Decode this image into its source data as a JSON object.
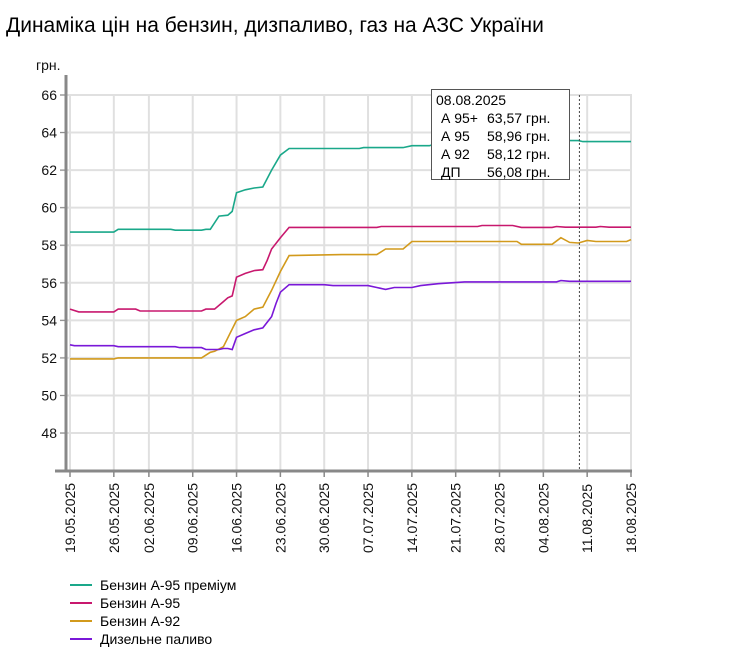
{
  "chart_data": {
    "type": "line",
    "title": "Динаміка цін на бензин, дизпаливо, газ на АЗС України",
    "ylabel": "грн.",
    "ylim": [
      47,
      66.5
    ],
    "yticks": [
      48,
      50,
      52,
      54,
      56,
      58,
      60,
      62,
      64,
      66
    ],
    "xlim": [
      0,
      128
    ],
    "xticks": [
      {
        "i": 0,
        "label": "19.05.2025"
      },
      {
        "i": 10,
        "label": "26.05.2025"
      },
      {
        "i": 18,
        "label": "02.06.2025"
      },
      {
        "i": 28,
        "label": "09.06.2025"
      },
      {
        "i": 38,
        "label": "16.06.2025"
      },
      {
        "i": 48,
        "label": "23.06.2025"
      },
      {
        "i": 58,
        "label": "30.06.2025"
      },
      {
        "i": 68,
        "label": "07.07.2025"
      },
      {
        "i": 78,
        "label": "14.07.2025"
      },
      {
        "i": 88,
        "label": "21.07.2025"
      },
      {
        "i": 98,
        "label": "28.07.2025"
      },
      {
        "i": 108,
        "label": "04.08.2025"
      },
      {
        "i": 118,
        "label": "11.08.2025"
      },
      {
        "i": 128,
        "label": "18.08.2025"
      }
    ],
    "grid": true,
    "legend_position": "bottom-left",
    "series": [
      {
        "name": "Бензин А-95 преміум",
        "color": "#1aa88a",
        "points": [
          [
            0,
            58.7
          ],
          [
            10,
            58.7
          ],
          [
            11,
            58.85
          ],
          [
            23,
            58.85
          ],
          [
            24,
            58.8
          ],
          [
            30,
            58.8
          ],
          [
            31,
            58.85
          ],
          [
            32,
            58.85
          ],
          [
            34,
            59.55
          ],
          [
            36,
            59.6
          ],
          [
            37,
            59.8
          ],
          [
            38,
            60.8
          ],
          [
            40,
            60.95
          ],
          [
            42,
            61.05
          ],
          [
            44,
            61.1
          ],
          [
            46,
            62.0
          ],
          [
            48,
            62.8
          ],
          [
            50,
            63.15
          ],
          [
            66,
            63.15
          ],
          [
            67,
            63.2
          ],
          [
            76,
            63.2
          ],
          [
            78,
            63.3
          ],
          [
            82,
            63.3
          ],
          [
            84,
            63.45
          ],
          [
            88,
            63.57
          ],
          [
            116,
            63.57
          ],
          [
            117,
            63.52
          ],
          [
            128,
            63.52
          ]
        ]
      },
      {
        "name": "Бензин А-95",
        "color": "#c8186e",
        "points": [
          [
            0,
            54.6
          ],
          [
            2,
            54.45
          ],
          [
            10,
            54.45
          ],
          [
            11,
            54.6
          ],
          [
            15,
            54.6
          ],
          [
            16,
            54.5
          ],
          [
            30,
            54.5
          ],
          [
            31,
            54.6
          ],
          [
            33,
            54.6
          ],
          [
            35,
            55.0
          ],
          [
            36,
            55.2
          ],
          [
            37,
            55.3
          ],
          [
            38,
            56.3
          ],
          [
            40,
            56.5
          ],
          [
            42,
            56.65
          ],
          [
            44,
            56.7
          ],
          [
            45,
            57.2
          ],
          [
            46,
            57.8
          ],
          [
            48,
            58.4
          ],
          [
            50,
            58.95
          ],
          [
            70,
            58.95
          ],
          [
            71,
            59.0
          ],
          [
            93,
            59.0
          ],
          [
            94,
            59.05
          ],
          [
            101,
            59.05
          ],
          [
            103,
            58.95
          ],
          [
            110,
            58.95
          ],
          [
            111,
            59.0
          ],
          [
            113,
            58.96
          ],
          [
            120,
            58.96
          ],
          [
            121,
            59.0
          ],
          [
            123,
            58.96
          ],
          [
            128,
            58.96
          ]
        ]
      },
      {
        "name": "Бензин А-92",
        "color": "#d29a1c",
        "points": [
          [
            0,
            51.95
          ],
          [
            10,
            51.95
          ],
          [
            11,
            52.0
          ],
          [
            30,
            52.0
          ],
          [
            32,
            52.3
          ],
          [
            33,
            52.35
          ],
          [
            35,
            52.6
          ],
          [
            38,
            54.0
          ],
          [
            40,
            54.2
          ],
          [
            42,
            54.6
          ],
          [
            44,
            54.7
          ],
          [
            46,
            55.6
          ],
          [
            48,
            56.6
          ],
          [
            50,
            57.45
          ],
          [
            62,
            57.5
          ],
          [
            70,
            57.5
          ],
          [
            72,
            57.8
          ],
          [
            76,
            57.8
          ],
          [
            78,
            58.2
          ],
          [
            102,
            58.2
          ],
          [
            103,
            58.05
          ],
          [
            110,
            58.05
          ],
          [
            112,
            58.4
          ],
          [
            114,
            58.15
          ],
          [
            116,
            58.12
          ],
          [
            118,
            58.25
          ],
          [
            120,
            58.2
          ],
          [
            127,
            58.2
          ],
          [
            128,
            58.3
          ]
        ]
      },
      {
        "name": "Дизельне паливо",
        "color": "#7a18d8",
        "points": [
          [
            0,
            52.7
          ],
          [
            1,
            52.65
          ],
          [
            10,
            52.65
          ],
          [
            11,
            52.6
          ],
          [
            24,
            52.6
          ],
          [
            25,
            52.55
          ],
          [
            30,
            52.55
          ],
          [
            31,
            52.45
          ],
          [
            34,
            52.45
          ],
          [
            35,
            52.5
          ],
          [
            36,
            52.5
          ],
          [
            37,
            52.45
          ],
          [
            38,
            53.1
          ],
          [
            40,
            53.3
          ],
          [
            42,
            53.5
          ],
          [
            44,
            53.6
          ],
          [
            46,
            54.2
          ],
          [
            47,
            54.9
          ],
          [
            48,
            55.5
          ],
          [
            50,
            55.9
          ],
          [
            58,
            55.9
          ],
          [
            60,
            55.85
          ],
          [
            68,
            55.85
          ],
          [
            70,
            55.75
          ],
          [
            72,
            55.65
          ],
          [
            74,
            55.75
          ],
          [
            78,
            55.75
          ],
          [
            80,
            55.85
          ],
          [
            84,
            55.95
          ],
          [
            90,
            56.05
          ],
          [
            111,
            56.05
          ],
          [
            112,
            56.12
          ],
          [
            114,
            56.08
          ],
          [
            128,
            56.08
          ]
        ]
      }
    ],
    "cursor": {
      "i": 116,
      "date": "08.08.2025"
    }
  },
  "tooltip": {
    "date": "08.08.2025",
    "rows": [
      {
        "name": "А 95+",
        "value": "63,57 грн."
      },
      {
        "name": "А 95",
        "value": "58,96 грн."
      },
      {
        "name": "А 92",
        "value": "58,12 грн."
      },
      {
        "name": "ДП",
        "value": "56,08 грн."
      }
    ]
  }
}
